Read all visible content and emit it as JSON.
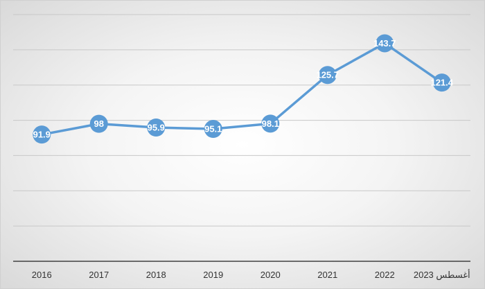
{
  "chart_data": {
    "type": "line",
    "categories": [
      "2016",
      "2017",
      "2018",
      "2019",
      "2020",
      "2021",
      "2022",
      "أغسطس 2023"
    ],
    "series": [
      {
        "values": [
          91.9,
          98,
          95.9,
          95.1,
          98.1,
          125.7,
          143.7,
          121.4
        ],
        "labels": [
          "91.9",
          "98",
          "95.9",
          "95.1",
          "98.1",
          "125.7",
          "143.7",
          "121.4"
        ]
      }
    ],
    "ylim": [
      20,
      160
    ],
    "grid": true,
    "legend": "none",
    "colors": {
      "line": "#5b9bd5",
      "marker": "#5b9bd5",
      "grid": "#c8c8c8",
      "axis": "#404040"
    }
  }
}
